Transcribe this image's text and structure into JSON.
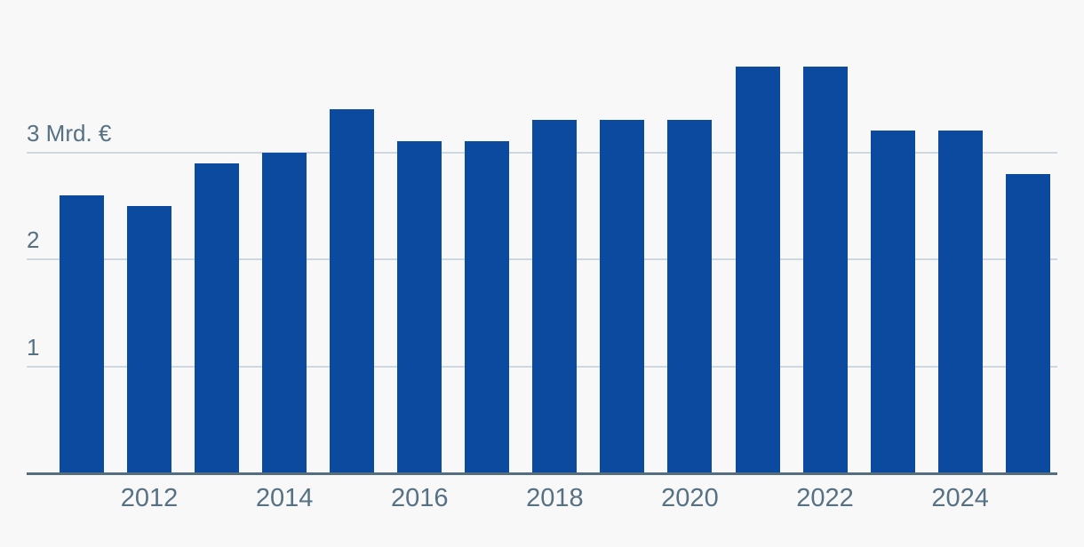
{
  "chart_data": {
    "type": "bar",
    "title": "",
    "unit_suffix": "Mrd. €",
    "categories": [
      "2011",
      "2012",
      "2013",
      "2014",
      "2015",
      "2016",
      "2017",
      "2018",
      "2019",
      "2020",
      "2021",
      "2022",
      "2023",
      "2024",
      "2025"
    ],
    "values": [
      2.6,
      2.5,
      2.9,
      3.0,
      3.4,
      3.1,
      3.1,
      3.3,
      3.3,
      3.3,
      3.8,
      3.8,
      3.2,
      3.2,
      2.8
    ],
    "y_ticks": [
      {
        "value": 1,
        "label": "1"
      },
      {
        "value": 2,
        "label": "2"
      },
      {
        "value": 3,
        "label": "3 Mrd. €"
      }
    ],
    "x_tick_labels": [
      "2012",
      "2014",
      "2016",
      "2018",
      "2020",
      "2022",
      "2024"
    ],
    "ylim": [
      0,
      4.4
    ],
    "grid": "horizontal-only",
    "legend": "none",
    "colors": {
      "bar": "#0b4a9e",
      "background": "#f8f8f9",
      "gridline": "#cfd8de",
      "axis_line": "#546e7d",
      "tick_text": "#567181"
    }
  }
}
